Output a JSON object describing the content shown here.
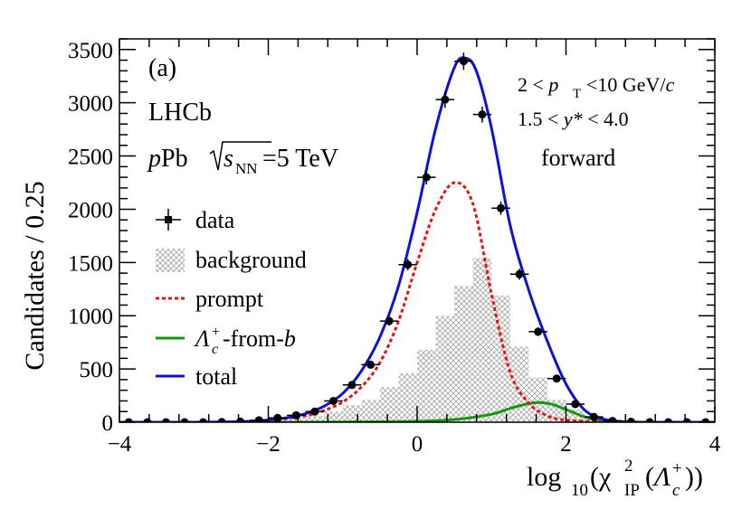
{
  "chart_data": {
    "type": "scatter",
    "panel_label": "(a)",
    "experiment": "LHCb",
    "system": {
      "prefix": "p",
      "name": "Pb",
      "sqrt_s_sub": "NN",
      "energy": "=5 TeV"
    },
    "pt_range": {
      "low": "2 <",
      "var": "p",
      "var_sub": "T",
      "high": "<10 GeV/",
      "unit_c": "c"
    },
    "y_range": {
      "low": "1.5 <",
      "var": "y*",
      "high": "< 4.0"
    },
    "direction": "forward",
    "xlabel": {
      "prefix": "log",
      "prefix_sub": "10",
      "body": "(χ",
      "sup": "2",
      "sub": "IP",
      "particle": "Λ",
      "particle_sup": "+",
      "particle_sub": "c",
      "close": "))"
    },
    "ylabel": "Candidates / 0.25",
    "xlim": [
      -4,
      4
    ],
    "ylim": [
      0,
      3600
    ],
    "xticks": [
      -4,
      -2,
      0,
      2,
      4
    ],
    "yticks": [
      0,
      500,
      1000,
      1500,
      2000,
      2500,
      3000,
      3500
    ],
    "legend": {
      "data": "data",
      "background": "background",
      "prompt": "prompt",
      "fromb_symbol": "Λ",
      "fromb_sup": "+",
      "fromb_sub": "c",
      "fromb_rest": "-from-",
      "fromb_b": "b",
      "total": "total"
    },
    "colors": {
      "total": "#1010dd",
      "prompt": "#ee1111",
      "fromb": "#119911",
      "background": "#b0b0b0",
      "data": "#000000"
    },
    "data_points": {
      "x": [
        -3.875,
        -3.625,
        -3.375,
        -3.125,
        -2.875,
        -2.625,
        -2.375,
        -2.125,
        -1.875,
        -1.625,
        -1.375,
        -1.125,
        -0.875,
        -0.625,
        -0.375,
        -0.125,
        0.125,
        0.375,
        0.625,
        0.875,
        1.125,
        1.375,
        1.625,
        1.875,
        2.125,
        2.375,
        2.625,
        2.875,
        3.125,
        3.375,
        3.625,
        3.875
      ],
      "y": [
        0,
        0,
        0,
        0,
        0,
        2,
        5,
        18,
        40,
        65,
        100,
        200,
        350,
        540,
        950,
        1480,
        2300,
        3030,
        3390,
        2890,
        2010,
        1390,
        850,
        410,
        170,
        50,
        12,
        4,
        1,
        0,
        0,
        0
      ]
    },
    "total_curve": {
      "x": [
        -4,
        -3,
        -2.5,
        -2.25,
        -2,
        -1.75,
        -1.5,
        -1.25,
        -1,
        -0.75,
        -0.5,
        -0.25,
        0,
        0.25,
        0.5,
        0.65,
        0.8,
        1,
        1.25,
        1.5,
        1.75,
        2,
        2.25,
        2.5,
        2.75,
        3,
        4
      ],
      "y": [
        0,
        0,
        3,
        8,
        20,
        42,
        80,
        150,
        270,
        480,
        800,
        1280,
        1970,
        2760,
        3330,
        3420,
        3290,
        2760,
        1850,
        1240,
        760,
        360,
        115,
        30,
        6,
        0,
        0
      ]
    },
    "prompt_curve": {
      "x": [
        -4,
        -3,
        -2.5,
        -2,
        -1.75,
        -1.5,
        -1.25,
        -1,
        -0.75,
        -0.5,
        -0.25,
        0,
        0.25,
        0.5,
        0.75,
        1,
        1.25,
        1.5,
        1.75,
        2,
        2.5,
        3,
        4
      ],
      "y": [
        0,
        0,
        2,
        15,
        35,
        60,
        110,
        190,
        330,
        560,
        950,
        1500,
        2000,
        2250,
        2050,
        1200,
        470,
        180,
        60,
        20,
        3,
        0,
        0
      ]
    },
    "fromb_curve": {
      "x": [
        -4,
        -2,
        -1,
        0,
        0.5,
        1,
        1.25,
        1.5,
        1.65,
        1.8,
        2,
        2.25,
        2.5,
        2.75,
        3,
        4
      ],
      "y": [
        0,
        0,
        2,
        8,
        25,
        75,
        130,
        175,
        185,
        170,
        120,
        50,
        12,
        3,
        0,
        0
      ]
    },
    "background_hist": {
      "x": [
        -2.625,
        -2.375,
        -2.125,
        -1.875,
        -1.625,
        -1.375,
        -1.125,
        -0.875,
        -0.625,
        -0.375,
        -0.125,
        0.125,
        0.375,
        0.625,
        0.875,
        1.125,
        1.375,
        1.625,
        1.875,
        2.125,
        2.375,
        2.625
      ],
      "y": [
        5,
        10,
        18,
        25,
        40,
        60,
        100,
        160,
        210,
        330,
        460,
        680,
        1000,
        1280,
        1540,
        1190,
        710,
        420,
        210,
        120,
        50,
        10
      ]
    }
  }
}
